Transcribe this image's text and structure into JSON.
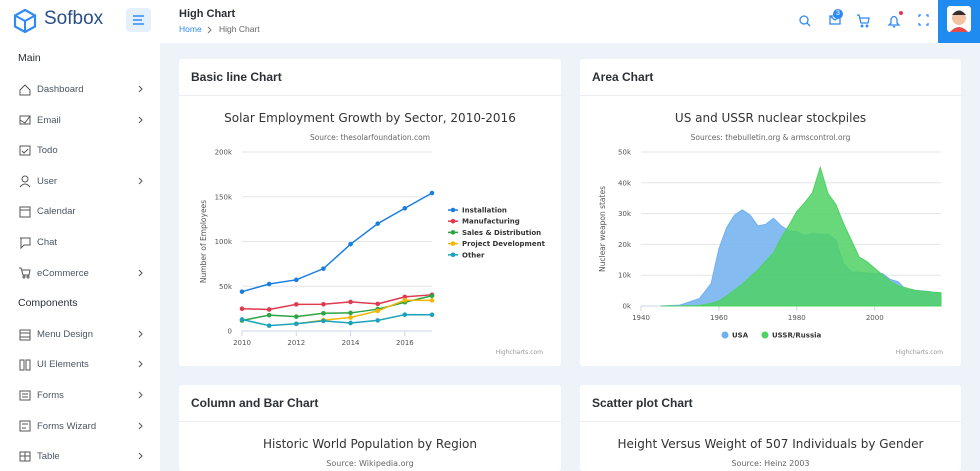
{
  "sidebar": {
    "brand": "Sofbox",
    "sections": [
      {
        "title": "Main",
        "items": [
          "Dashboard",
          "Email",
          "Todo",
          "User",
          "Calendar",
          "Chat",
          "eCommerce"
        ]
      },
      {
        "title": "Components",
        "items": [
          "Menu Design",
          "UI Elements",
          "Forms",
          "Forms Wizard",
          "Table"
        ]
      }
    ]
  },
  "header": {
    "title": "High Chart",
    "breadcrumb": [
      "Home",
      "High Chart"
    ],
    "mail_badge": 3
  },
  "cards": [
    {
      "title": "Basic line Chart"
    },
    {
      "title": "Area Chart"
    },
    {
      "title": "Column and Bar Chart",
      "chart_title": "Historic World Population by Region",
      "chart_subtitle": "Source: Wikipedia.org"
    },
    {
      "title": "Scatter plot Chart",
      "chart_title": "Height Versus Weight of 507 Individuals by Gender",
      "chart_subtitle": "Source: Heinz 2003"
    }
  ],
  "chart_data": [
    {
      "type": "line",
      "title": "Solar Employment Growth by Sector, 2010-2016",
      "subtitle": "Source: thesolarfoundation.com",
      "y_label": "Number of Employees",
      "credits": "Highcharts.com",
      "legend": "right",
      "grid": true,
      "x": [
        2010,
        2011,
        2012,
        2013,
        2014,
        2015,
        2016,
        2017
      ],
      "xlim": [
        2010,
        2017
      ],
      "xticks": [
        2010,
        2012,
        2014,
        2016
      ],
      "ylim": [
        0,
        200000
      ],
      "yticks": [
        0,
        {
          "value": 50000,
          "label": "50k"
        },
        {
          "value": 100000,
          "label": "100k"
        },
        {
          "value": 150000,
          "label": "150k"
        },
        {
          "value": 200000,
          "label": "200k"
        }
      ],
      "series": [
        {
          "name": "Installation",
          "color": "#1a7fe0",
          "values": [
            43934,
            52503,
            57177,
            69658,
            97031,
            119931,
            137133,
            154175
          ]
        },
        {
          "name": "Manufacturing",
          "color": "#e0394d",
          "values": [
            24916,
            24064,
            29742,
            29851,
            32490,
            30282,
            38121,
            40434
          ]
        },
        {
          "name": "Sales & Distribution",
          "color": "#2ca444",
          "values": [
            11744,
            17722,
            16005,
            19771,
            20185,
            24377,
            32147,
            39387
          ]
        },
        {
          "name": "Project Development",
          "color": "#f2b705",
          "values": [
            null,
            null,
            7988,
            12169,
            15112,
            22452,
            34400,
            34227
          ]
        },
        {
          "name": "Other",
          "color": "#1aa3b8",
          "values": [
            12908,
            5948,
            8105,
            11248,
            8989,
            11816,
            18274,
            18111
          ]
        }
      ]
    },
    {
      "type": "area",
      "title": "US and USSR nuclear stockpiles",
      "subtitle": "Sources: thebulletin.org & armscontrol.org",
      "y_label": "Nuclear weapon states",
      "credits": "Highcharts.com",
      "legend": "bottom",
      "grid": true,
      "x": [
        1945,
        1950,
        1955,
        1958,
        1960,
        1962,
        1964,
        1966,
        1968,
        1970,
        1972,
        1974,
        1976,
        1978,
        1980,
        1982,
        1984,
        1986,
        1988,
        1990,
        1992,
        1994,
        1996,
        1998,
        2000,
        2002,
        2004,
        2006,
        2008,
        2010,
        2012,
        2014,
        2017
      ],
      "xlim": [
        1940,
        2017
      ],
      "xticks": [
        1940,
        1960,
        1980,
        2000
      ],
      "ylim": [
        0,
        50000
      ],
      "yticks": [
        {
          "value": 0,
          "label": "0k"
        },
        {
          "value": 10000,
          "label": "10k"
        },
        {
          "value": 20000,
          "label": "20k"
        },
        {
          "value": 30000,
          "label": "30k"
        },
        {
          "value": 40000,
          "label": "40k"
        },
        {
          "value": 50000,
          "label": "50k"
        }
      ],
      "series": [
        {
          "name": "USA",
          "color": "#6fb0f0",
          "values": [
            0,
            300,
            2400,
            7300,
            18600,
            25500,
            29500,
            31200,
            29500,
            26000,
            26500,
            28500,
            26000,
            24400,
            24100,
            22900,
            23500,
            23300,
            23200,
            21400,
            13700,
            11000,
            11000,
            10700,
            10600,
            10500,
            8600,
            7900,
            5300,
            5100,
            4900,
            4700,
            3800
          ]
        },
        {
          "name": "USSR/Russia",
          "color": "#4fd164",
          "values": [
            0,
            5,
            200,
            900,
            1600,
            3300,
            5200,
            7100,
            9500,
            11700,
            14600,
            17300,
            22200,
            26200,
            30700,
            33500,
            36800,
            45000,
            36500,
            33000,
            26700,
            21300,
            15900,
            14400,
            12200,
            10100,
            8000,
            6600,
            5900,
            5200,
            4800,
            4600,
            4300
          ]
        }
      ]
    }
  ]
}
